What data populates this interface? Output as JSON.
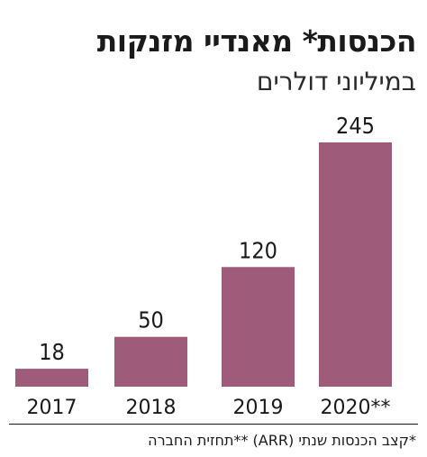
{
  "chart_data": {
    "type": "bar",
    "title": "הכנסות* מאנדיי מזנקות",
    "subtitle": "במיליוני דולרים",
    "categories": [
      "2017",
      "2018",
      "2019",
      "2020**"
    ],
    "values": [
      18,
      50,
      120,
      245
    ],
    "bar_color": "#9e5b7a",
    "footnote": "*קצב הכנסות שנתי (ARR) **תחזית החברה"
  }
}
